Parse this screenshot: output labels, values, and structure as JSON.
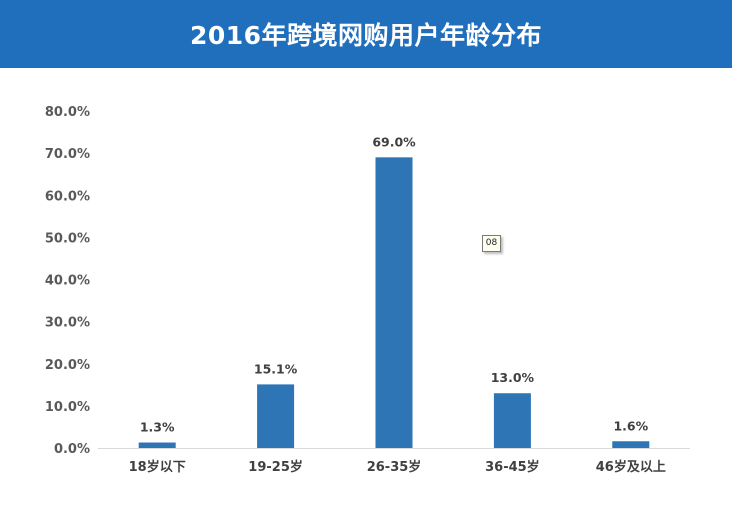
{
  "header": {
    "title": "2016年跨境网购用户年龄分布"
  },
  "marker": {
    "label": "08"
  },
  "colors": {
    "header_bg": "#1f6fbd",
    "bar": "#2e75b6",
    "axis": "#d9d9d9"
  },
  "chart_data": {
    "type": "bar",
    "title": "2016年跨境网购用户年龄分布",
    "xlabel": "",
    "ylabel": "",
    "ylim": [
      0,
      80
    ],
    "y_ticks": [
      "0.0%",
      "10.0%",
      "20.0%",
      "30.0%",
      "40.0%",
      "50.0%",
      "60.0%",
      "70.0%",
      "80.0%"
    ],
    "categories": [
      "18岁以下",
      "19-25岁",
      "26-35岁",
      "36-45岁",
      "46岁及以上"
    ],
    "values": [
      1.3,
      15.1,
      69.0,
      13.0,
      1.6
    ],
    "data_labels": [
      "1.3%",
      "15.1%",
      "69.0%",
      "13.0%",
      "1.6%"
    ],
    "grid": false,
    "legend": "none"
  }
}
